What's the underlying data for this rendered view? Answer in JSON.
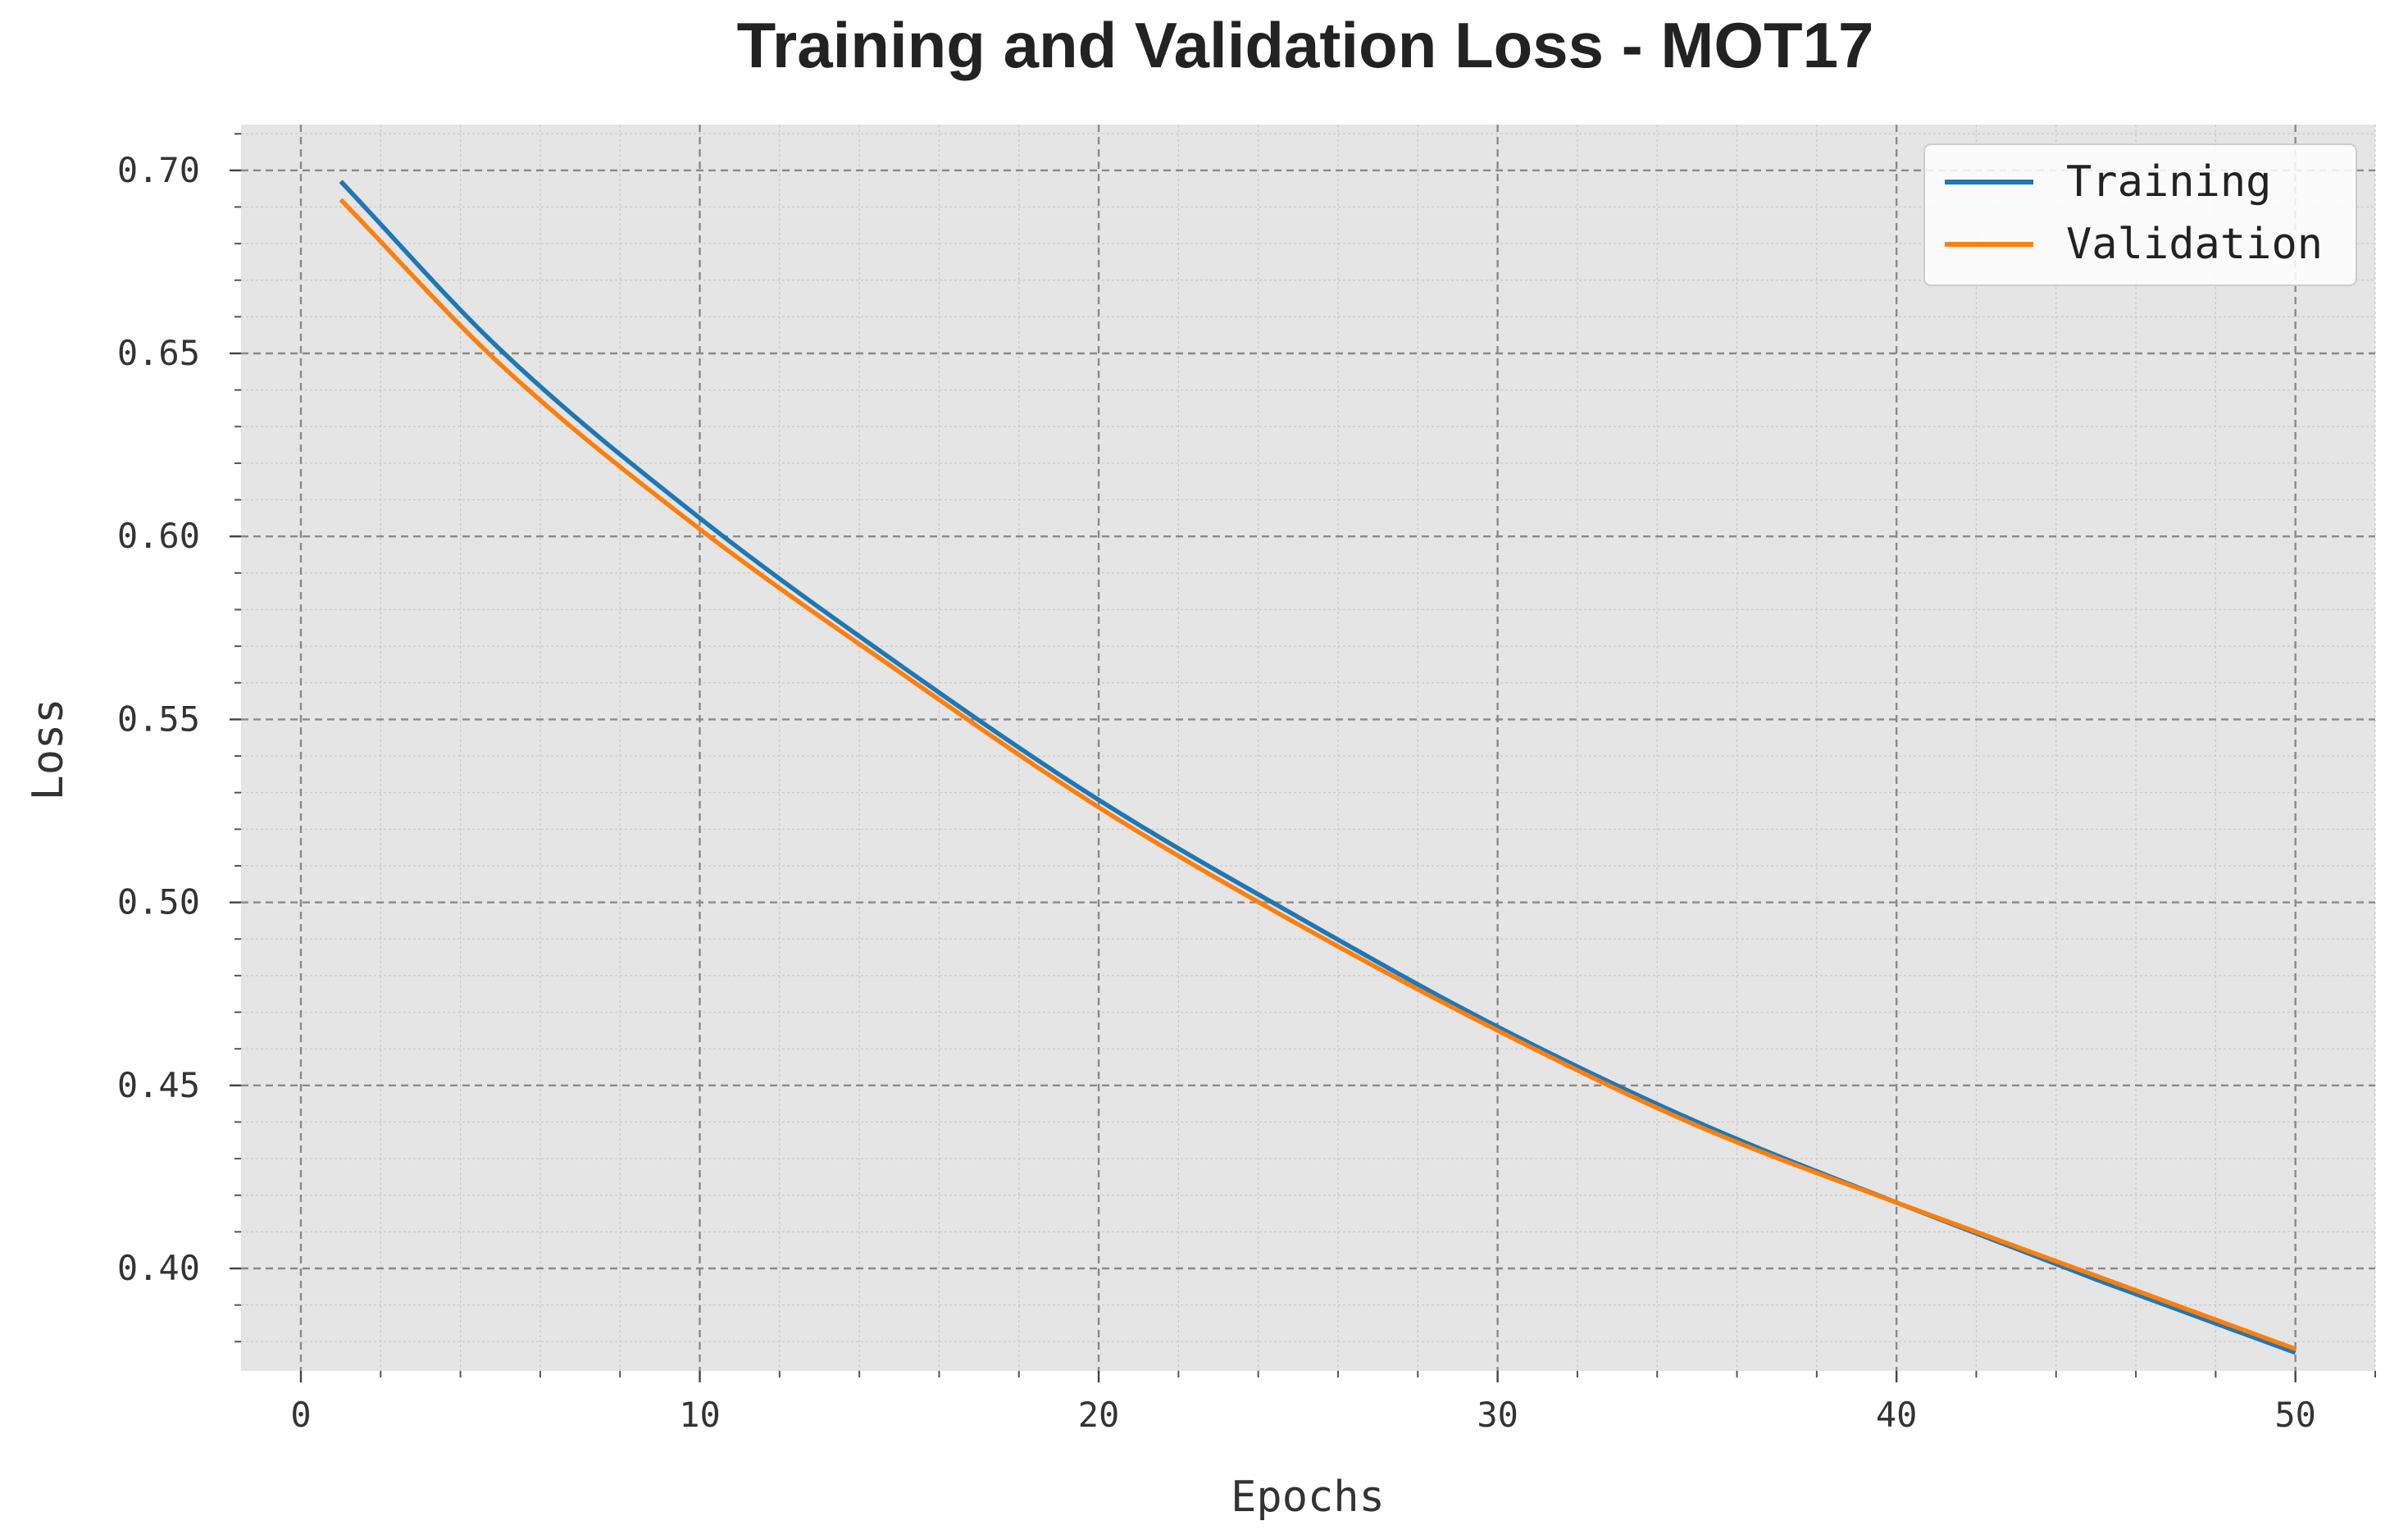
{
  "chart_data": {
    "type": "line",
    "title": "Training and Validation Loss - MOT17",
    "xlabel": "Epochs",
    "ylabel": "Loss",
    "xlim": [
      -1.5,
      52
    ],
    "ylim": [
      0.372,
      0.7125
    ],
    "xticks": [
      0,
      10,
      20,
      30,
      40,
      50
    ],
    "xtick_labels": [
      "0",
      "10",
      "20",
      "30",
      "40",
      "50"
    ],
    "yticks": [
      0.4,
      0.45,
      0.5,
      0.55,
      0.6,
      0.65,
      0.7
    ],
    "ytick_labels": [
      "0.40",
      "0.45",
      "0.50",
      "0.55",
      "0.60",
      "0.65",
      "0.70"
    ],
    "grid": true,
    "minor_grid": true,
    "legend_position": "top-right",
    "x": [
      1,
      5,
      10,
      15,
      20,
      25,
      30,
      35,
      40,
      45,
      50
    ],
    "series": [
      {
        "name": "Training",
        "color": "#1f77b4",
        "values": [
          0.697,
          0.651,
          0.605,
          0.565,
          0.528,
          0.496,
          0.466,
          0.44,
          0.418,
          0.397,
          0.377
        ]
      },
      {
        "name": "Validation",
        "color": "#ff7f0e",
        "values": [
          0.692,
          0.647,
          0.602,
          0.563,
          0.526,
          0.494,
          0.465,
          0.439,
          0.418,
          0.398,
          0.378
        ]
      }
    ]
  }
}
